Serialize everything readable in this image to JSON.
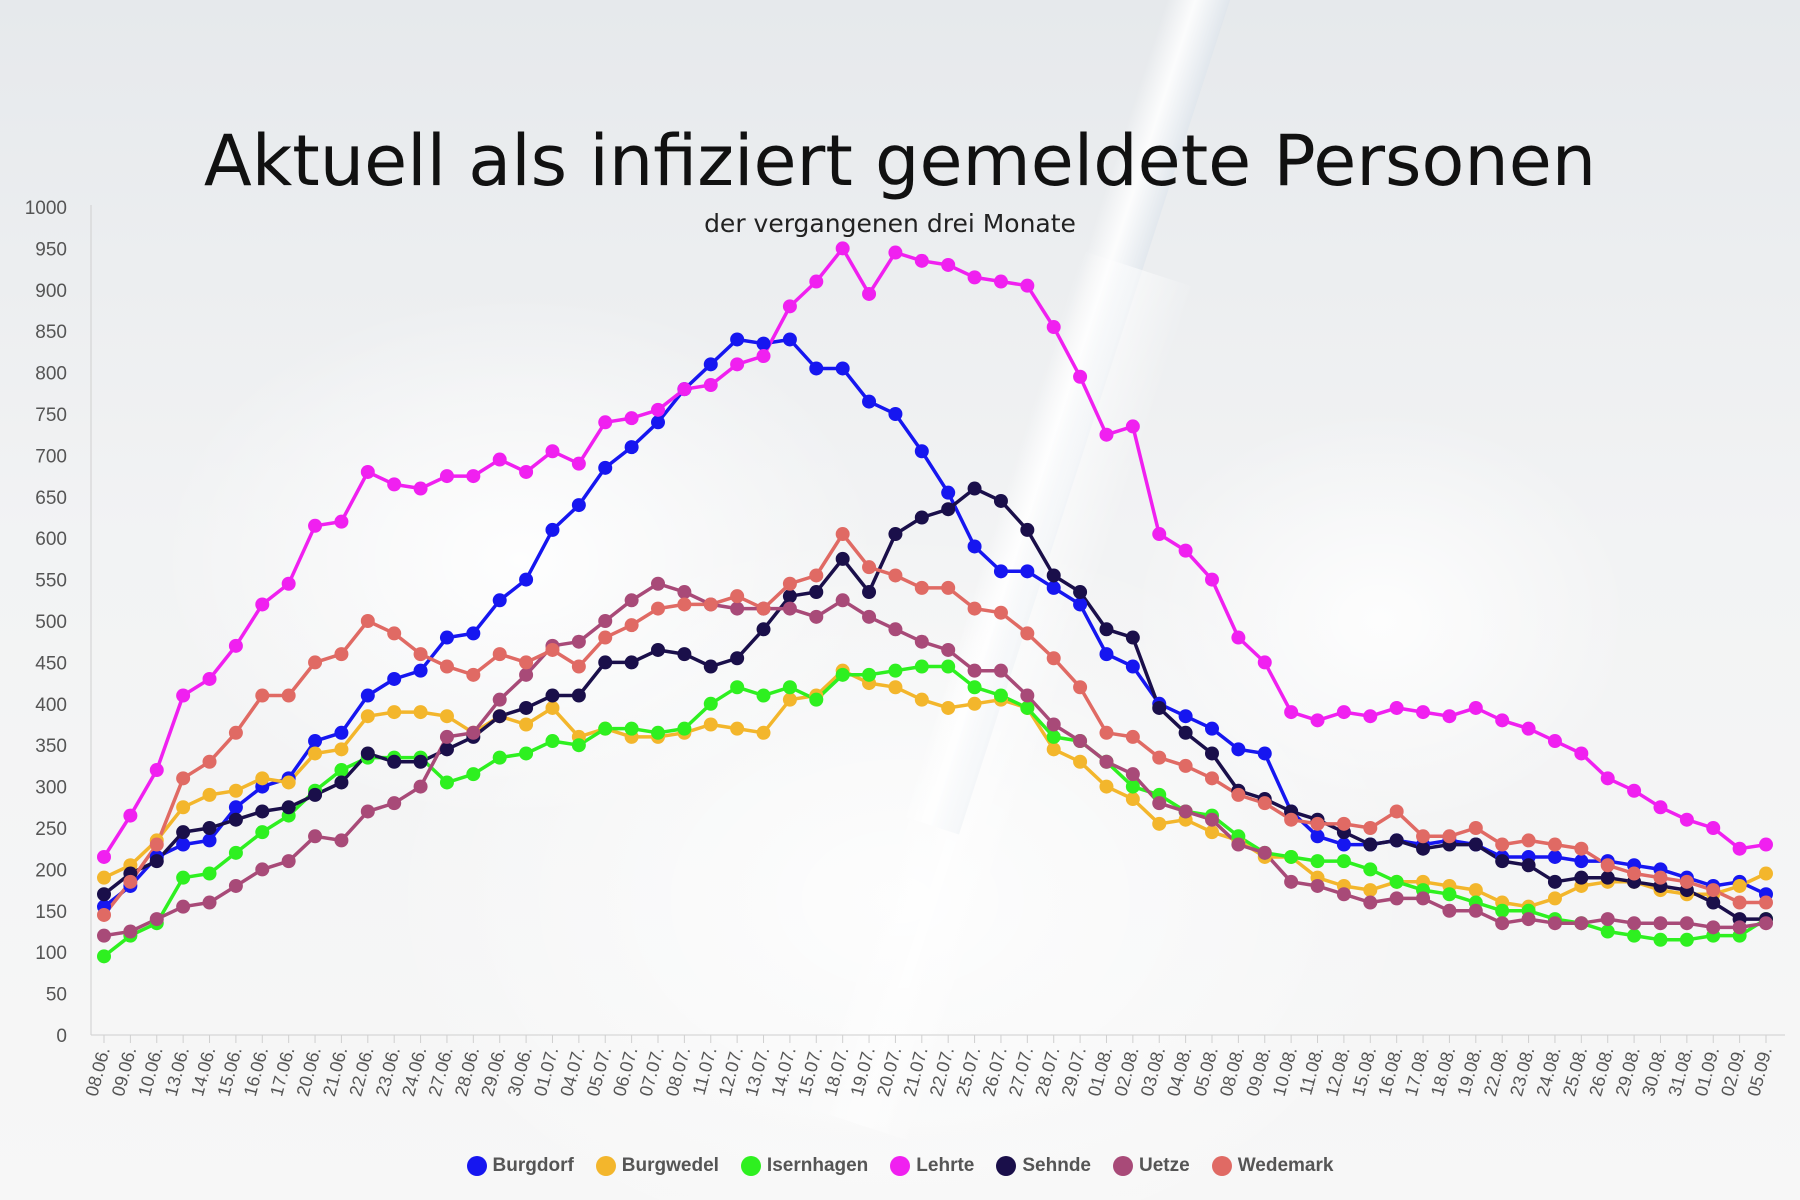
{
  "chart_data": {
    "type": "line",
    "title": "Aktuell als infiziert gemeldete Personen",
    "subtitle": "der vergangenen drei Monate",
    "xlabel": "",
    "ylabel": "",
    "ylim": [
      0,
      1000
    ],
    "yticks": [
      0,
      50,
      100,
      150,
      200,
      250,
      300,
      350,
      400,
      450,
      500,
      550,
      600,
      650,
      700,
      750,
      800,
      850,
      900,
      950,
      1000
    ],
    "grid": false,
    "legend_position": "bottom",
    "x": [
      "08.06.",
      "09.06.",
      "10.06.",
      "13.06.",
      "14.06.",
      "15.06.",
      "16.06.",
      "17.06.",
      "20.06.",
      "21.06.",
      "22.06.",
      "23.06.",
      "24.06.",
      "27.06.",
      "28.06.",
      "29.06.",
      "30.06.",
      "01.07.",
      "04.07.",
      "05.07.",
      "06.07.",
      "07.07.",
      "08.07.",
      "11.07.",
      "12.07.",
      "13.07.",
      "14.07.",
      "15.07.",
      "18.07.",
      "19.07.",
      "20.07.",
      "21.07.",
      "22.07.",
      "25.07.",
      "26.07.",
      "27.07.",
      "28.07.",
      "29.07.",
      "01.08.",
      "02.08.",
      "03.08.",
      "04.08.",
      "05.08.",
      "08.08.",
      "09.08.",
      "10.08.",
      "11.08.",
      "12.08.",
      "15.08.",
      "16.08.",
      "17.08.",
      "18.08.",
      "19.08.",
      "22.08.",
      "23.08.",
      "24.08.",
      "25.08.",
      "26.08.",
      "29.08.",
      "30.08.",
      "31.08.",
      "01.09.",
      "02.09.",
      "05.09."
    ],
    "series": [
      {
        "name": "Burgdorf",
        "color": "#1616f0",
        "values": [
          155,
          180,
          215,
          230,
          235,
          275,
          300,
          310,
          355,
          365,
          410,
          430,
          440,
          480,
          485,
          525,
          550,
          610,
          640,
          685,
          710,
          740,
          780,
          810,
          840,
          835,
          840,
          805,
          805,
          765,
          750,
          705,
          655,
          590,
          560,
          560,
          540,
          520,
          460,
          445,
          400,
          385,
          370,
          345,
          340,
          270,
          240,
          230,
          230,
          235,
          230,
          235,
          230,
          215,
          215,
          215,
          210,
          210,
          205,
          200,
          190,
          180,
          185,
          170
        ]
      },
      {
        "name": "Burgwedel",
        "color": "#f3b62c",
        "values": [
          190,
          205,
          235,
          275,
          290,
          295,
          310,
          305,
          340,
          345,
          385,
          390,
          390,
          385,
          365,
          385,
          375,
          395,
          360,
          370,
          360,
          360,
          365,
          375,
          370,
          365,
          405,
          410,
          440,
          425,
          420,
          405,
          395,
          400,
          405,
          395,
          345,
          330,
          300,
          285,
          255,
          260,
          245,
          235,
          215,
          215,
          190,
          180,
          175,
          185,
          185,
          180,
          175,
          160,
          155,
          165,
          180,
          185,
          185,
          175,
          170,
          170,
          180,
          195
        ]
      },
      {
        "name": "Isernhagen",
        "color": "#2ef020",
        "values": [
          95,
          120,
          135,
          190,
          195,
          220,
          245,
          265,
          295,
          320,
          335,
          335,
          335,
          305,
          315,
          335,
          340,
          355,
          350,
          370,
          370,
          365,
          370,
          400,
          420,
          410,
          420,
          405,
          435,
          435,
          440,
          445,
          445,
          420,
          410,
          395,
          360,
          355,
          330,
          300,
          290,
          270,
          265,
          240,
          220,
          215,
          210,
          210,
          200,
          185,
          175,
          170,
          160,
          150,
          150,
          140,
          135,
          125,
          120,
          115,
          115,
          120,
          120,
          140
        ]
      },
      {
        "name": "Lehrte",
        "color": "#f020f0",
        "values": [
          215,
          265,
          320,
          410,
          430,
          470,
          520,
          545,
          615,
          620,
          680,
          665,
          660,
          675,
          675,
          695,
          680,
          705,
          690,
          740,
          745,
          755,
          780,
          785,
          810,
          820,
          880,
          910,
          950,
          895,
          945,
          935,
          930,
          915,
          910,
          905,
          855,
          795,
          725,
          735,
          605,
          585,
          550,
          480,
          450,
          390,
          380,
          390,
          385,
          395,
          390,
          385,
          395,
          380,
          370,
          355,
          340,
          310,
          295,
          275,
          260,
          250,
          225,
          230
        ]
      },
      {
        "name": "Sehnde",
        "color": "#1a0f4a",
        "values": [
          170,
          195,
          210,
          245,
          250,
          260,
          270,
          275,
          290,
          305,
          340,
          330,
          330,
          345,
          360,
          385,
          395,
          410,
          410,
          450,
          450,
          465,
          460,
          445,
          455,
          490,
          530,
          535,
          575,
          535,
          605,
          625,
          635,
          660,
          645,
          610,
          555,
          535,
          490,
          480,
          395,
          365,
          340,
          295,
          285,
          270,
          260,
          245,
          230,
          235,
          225,
          230,
          230,
          210,
          205,
          185,
          190,
          190,
          185,
          180,
          175,
          160,
          140,
          140
        ]
      },
      {
        "name": "Uetze",
        "color": "#a84a78",
        "values": [
          120,
          125,
          140,
          155,
          160,
          180,
          200,
          210,
          240,
          235,
          270,
          280,
          300,
          360,
          365,
          405,
          435,
          470,
          475,
          500,
          525,
          545,
          535,
          520,
          515,
          515,
          515,
          505,
          525,
          505,
          490,
          475,
          465,
          440,
          440,
          410,
          375,
          355,
          330,
          315,
          280,
          270,
          260,
          230,
          220,
          185,
          180,
          170,
          160,
          165,
          165,
          150,
          150,
          135,
          140,
          135,
          135,
          140,
          135,
          135,
          135,
          130,
          130,
          135
        ]
      },
      {
        "name": "Wedemark",
        "color": "#e06a64",
        "values": [
          145,
          185,
          230,
          310,
          330,
          365,
          410,
          410,
          450,
          460,
          500,
          485,
          460,
          445,
          435,
          460,
          450,
          465,
          445,
          480,
          495,
          515,
          520,
          520,
          530,
          515,
          545,
          555,
          605,
          565,
          555,
          540,
          540,
          515,
          510,
          485,
          455,
          420,
          365,
          360,
          335,
          325,
          310,
          290,
          280,
          260,
          255,
          255,
          250,
          270,
          240,
          240,
          250,
          230,
          235,
          230,
          225,
          205,
          195,
          190,
          185,
          175,
          160,
          160
        ]
      }
    ]
  }
}
